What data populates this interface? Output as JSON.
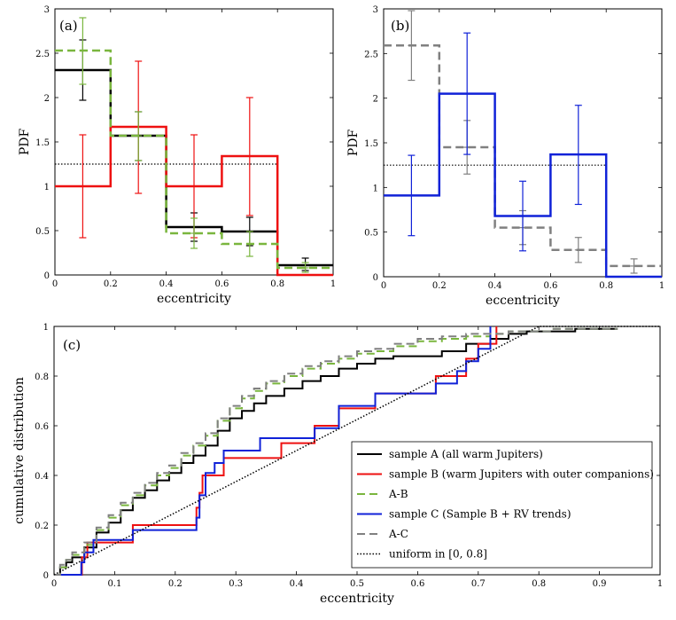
{
  "chart_data": [
    {
      "panel": "(a)",
      "type": "histogram",
      "xlabel": "eccentricity",
      "ylabel": "PDF",
      "xlim": [
        0,
        1
      ],
      "ylim": [
        0,
        3
      ],
      "xticks": [
        "0",
        "0.2",
        "0.4",
        "0.6",
        "0.8",
        "1"
      ],
      "yticks": [
        "0",
        "0.5",
        "1",
        "1.5",
        "2",
        "2.5",
        "3"
      ],
      "bin_edges": [
        0,
        0.2,
        0.4,
        0.6,
        0.8,
        1.0
      ],
      "uniform_level": 1.25,
      "series": [
        {
          "key": "A",
          "color": "#000000",
          "style": "solid",
          "width": 2.5,
          "values": [
            2.31,
            1.57,
            0.54,
            0.49,
            0.11
          ],
          "errors": {
            "x": [
              0.1,
              0.3,
              0.5,
              0.7,
              0.9
            ],
            "lo": [
              1.97,
              1.29,
              0.38,
              0.33,
              0.05
            ],
            "hi": [
              2.65,
              1.84,
              0.7,
              0.65,
              0.19
            ],
            "cy": [
              2.31,
              1.57,
              0.54,
              0.49,
              0.11
            ]
          }
        },
        {
          "key": "B",
          "color": "#ee1111",
          "style": "solid",
          "width": 2.5,
          "values": [
            1.0,
            1.67,
            1.0,
            1.34,
            0.0
          ],
          "errors": {
            "x": [
              0.1,
              0.3,
              0.5,
              0.7
            ],
            "lo": [
              0.42,
              0.92,
              0.42,
              0.67
            ],
            "hi": [
              1.58,
              2.41,
              1.58,
              2.0
            ],
            "cy": [
              1.0,
              1.67,
              1.0,
              1.34
            ]
          }
        },
        {
          "key": "AB",
          "color": "#7ab63e",
          "style": "dashed",
          "width": 2.5,
          "values": [
            2.53,
            1.57,
            0.47,
            0.35,
            0.08
          ],
          "errors": {
            "x": [
              0.1,
              0.3,
              0.5,
              0.7,
              0.9
            ],
            "lo": [
              2.15,
              1.29,
              0.3,
              0.21,
              0.03
            ],
            "hi": [
              2.9,
              1.84,
              0.64,
              0.49,
              0.14
            ],
            "cy": [
              2.53,
              1.57,
              0.47,
              0.35,
              0.08
            ]
          }
        }
      ]
    },
    {
      "panel": "(b)",
      "type": "histogram",
      "xlabel": "eccentricity",
      "ylabel": "PDF",
      "xlim": [
        0,
        1
      ],
      "ylim": [
        0,
        3
      ],
      "xticks": [
        "0",
        "0.2",
        "0.4",
        "0.6",
        "0.8",
        "1"
      ],
      "yticks": [
        "0",
        "0.5",
        "1",
        "1.5",
        "2",
        "2.5",
        "3"
      ],
      "bin_edges": [
        0,
        0.2,
        0.4,
        0.6,
        0.8,
        1.0
      ],
      "uniform_level": 1.25,
      "series": [
        {
          "key": "AC",
          "color": "#808080",
          "style": "dashed",
          "width": 2.5,
          "values": [
            2.59,
            1.45,
            0.55,
            0.3,
            0.12
          ],
          "errors": {
            "x": [
              0.1,
              0.3,
              0.5,
              0.7,
              0.9
            ],
            "lo": [
              2.2,
              1.15,
              0.36,
              0.16,
              0.04
            ],
            "hi": [
              2.98,
              1.75,
              0.74,
              0.44,
              0.2
            ],
            "cy": [
              2.59,
              1.45,
              0.55,
              0.3,
              0.12
            ]
          }
        },
        {
          "key": "C",
          "color": "#1022d8",
          "style": "solid",
          "width": 2.5,
          "values": [
            0.91,
            2.05,
            0.68,
            1.37,
            0.0
          ],
          "errors": {
            "x": [
              0.1,
              0.3,
              0.5,
              0.7
            ],
            "lo": [
              0.46,
              1.37,
              0.29,
              0.81
            ],
            "hi": [
              1.36,
              2.73,
              1.07,
              1.92
            ],
            "cy": [
              0.91,
              2.05,
              0.68,
              1.37
            ]
          }
        }
      ]
    },
    {
      "panel": "(c)",
      "type": "line",
      "xlabel": "eccentricity",
      "ylabel": "cumulative distribution",
      "xlim": [
        0,
        1
      ],
      "ylim": [
        0,
        1
      ],
      "xticks": [
        "0",
        "0.1",
        "0.2",
        "0.3",
        "0.4",
        "0.5",
        "0.6",
        "0.7",
        "0.8",
        "0.9",
        "1"
      ],
      "yticks": [
        "0",
        "0.2",
        "0.4",
        "0.6",
        "0.8",
        "1"
      ],
      "legend_position": "bottom-right",
      "series": [
        {
          "name": "sample A (all warm Jupiters)",
          "color": "#000000",
          "style": "solid",
          "width": 2,
          "x": [
            0,
            0.01,
            0.02,
            0.03,
            0.05,
            0.07,
            0.09,
            0.11,
            0.13,
            0.15,
            0.17,
            0.19,
            0.21,
            0.23,
            0.25,
            0.27,
            0.29,
            0.31,
            0.33,
            0.35,
            0.38,
            0.41,
            0.44,
            0.47,
            0.5,
            0.53,
            0.56,
            0.6,
            0.64,
            0.68,
            0.72,
            0.75,
            0.78,
            0.82,
            0.86,
            0.9,
            0.93
          ],
          "y": [
            0,
            0.03,
            0.05,
            0.07,
            0.11,
            0.17,
            0.21,
            0.26,
            0.31,
            0.34,
            0.38,
            0.41,
            0.45,
            0.48,
            0.52,
            0.58,
            0.63,
            0.66,
            0.69,
            0.72,
            0.75,
            0.78,
            0.8,
            0.83,
            0.85,
            0.87,
            0.88,
            0.88,
            0.9,
            0.93,
            0.95,
            0.97,
            0.98,
            0.98,
            0.99,
            0.99,
            0.99
          ]
        },
        {
          "name": "sample B (warm Jupiters with outer companions)",
          "color": "#ee1111",
          "style": "solid",
          "width": 2,
          "x": [
            0,
            0.046,
            0.055,
            0.065,
            0.13,
            0.235,
            0.24,
            0.245,
            0.255,
            0.28,
            0.375,
            0.43,
            0.47,
            0.53,
            0.63,
            0.665,
            0.68,
            0.7,
            0.72,
            0.73
          ],
          "y": [
            0,
            0.07,
            0.13,
            0.13,
            0.2,
            0.27,
            0.33,
            0.4,
            0.4,
            0.47,
            0.53,
            0.6,
            0.67,
            0.73,
            0.8,
            0.8,
            0.87,
            0.93,
            0.93,
            1.0
          ]
        },
        {
          "key": "AB",
          "name": "A-B",
          "color": "#7ab63e",
          "style": "dashed",
          "width": 2,
          "x": [
            0,
            0.01,
            0.02,
            0.03,
            0.05,
            0.07,
            0.09,
            0.11,
            0.13,
            0.15,
            0.17,
            0.19,
            0.21,
            0.23,
            0.25,
            0.27,
            0.29,
            0.31,
            0.33,
            0.35,
            0.38,
            0.41,
            0.44,
            0.47,
            0.5,
            0.53,
            0.56,
            0.6,
            0.64,
            0.68,
            0.72,
            0.75,
            0.78,
            0.82,
            0.86,
            0.9,
            0.93
          ],
          "y": [
            0,
            0.03,
            0.06,
            0.08,
            0.12,
            0.18,
            0.23,
            0.28,
            0.32,
            0.36,
            0.4,
            0.43,
            0.48,
            0.52,
            0.56,
            0.62,
            0.67,
            0.71,
            0.74,
            0.77,
            0.8,
            0.83,
            0.85,
            0.87,
            0.89,
            0.9,
            0.92,
            0.94,
            0.95,
            0.96,
            0.97,
            0.98,
            0.98,
            0.99,
            0.99,
            0.99,
            0.99
          ]
        },
        {
          "name": "sample C (Sample B + RV trends)",
          "color": "#1022d8",
          "style": "solid",
          "width": 2,
          "x": [
            0,
            0.045,
            0.05,
            0.065,
            0.13,
            0.235,
            0.24,
            0.25,
            0.265,
            0.28,
            0.34,
            0.43,
            0.47,
            0.53,
            0.63,
            0.665,
            0.68,
            0.7,
            0.72
          ],
          "y": [
            0,
            0.05,
            0.09,
            0.14,
            0.18,
            0.23,
            0.32,
            0.41,
            0.45,
            0.5,
            0.55,
            0.59,
            0.68,
            0.73,
            0.77,
            0.82,
            0.86,
            0.91,
            1.0
          ]
        },
        {
          "key": "AC",
          "name": "A-C",
          "color": "#808080",
          "style": "dashed",
          "width": 2,
          "x": [
            0,
            0.01,
            0.02,
            0.03,
            0.05,
            0.07,
            0.09,
            0.11,
            0.13,
            0.15,
            0.17,
            0.19,
            0.21,
            0.23,
            0.25,
            0.27,
            0.29,
            0.31,
            0.33,
            0.35,
            0.38,
            0.41,
            0.44,
            0.47,
            0.5,
            0.53,
            0.56,
            0.6,
            0.64,
            0.68,
            0.72,
            0.75,
            0.78,
            0.82,
            0.86,
            0.9,
            0.93
          ],
          "y": [
            0,
            0.04,
            0.06,
            0.09,
            0.13,
            0.19,
            0.24,
            0.29,
            0.33,
            0.37,
            0.41,
            0.44,
            0.49,
            0.53,
            0.57,
            0.63,
            0.68,
            0.72,
            0.75,
            0.78,
            0.81,
            0.84,
            0.86,
            0.88,
            0.9,
            0.91,
            0.93,
            0.95,
            0.96,
            0.97,
            0.97,
            0.98,
            0.98,
            0.99,
            0.99,
            0.99,
            0.99
          ]
        },
        {
          "name": "uniform in [0, 0.8]",
          "color": "#000000",
          "style": "dotted",
          "width": 1.5,
          "x": [
            0,
            0.8,
            1.0
          ],
          "y": [
            0,
            1,
            1
          ]
        }
      ]
    }
  ]
}
